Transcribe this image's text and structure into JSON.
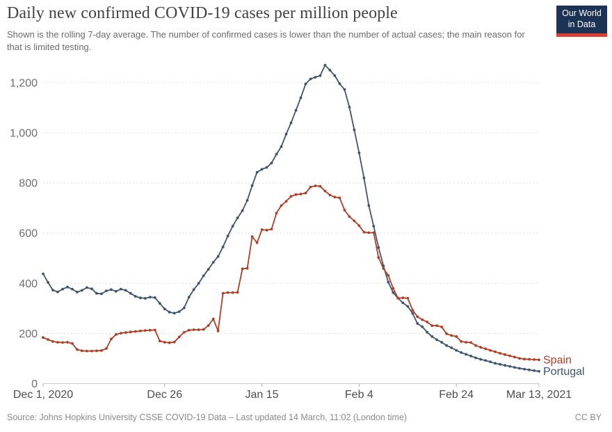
{
  "header": {
    "title": "Daily new confirmed COVID-19 cases per million people",
    "subtitle": "Shown is the rolling 7-day average. The number of confirmed cases is lower than the number of actual cases; the main reason for that is limited testing.",
    "logo": {
      "line1": "Our World",
      "line2": "in Data",
      "bg_color": "#1d3356",
      "stripe_color": "#dc3e32"
    }
  },
  "footer": {
    "source": "Source: Johns Hopkins University CSSE COVID-19 Data – Last updated 14 March, 11:02 (London time)",
    "license": "CC BY"
  },
  "chart_data": {
    "type": "line",
    "title": "Daily new confirmed COVID-19 cases per million people",
    "x": {
      "start_label": "Dec 1, 2020",
      "end_label": "Mar 13, 2021",
      "total_days": 102,
      "tick_days": [
        0,
        25,
        45,
        65,
        85,
        102
      ],
      "tick_labels": [
        "Dec 1, 2020",
        "Dec 26",
        "Jan 15",
        "Feb 4",
        "Feb 24",
        "Mar 13, 2021"
      ]
    },
    "y": {
      "ticks": [
        0,
        200,
        400,
        600,
        800,
        1000,
        1200
      ],
      "tick_labels": [
        "0",
        "200",
        "400",
        "600",
        "800",
        "1,000",
        "1,200"
      ],
      "lim": [
        0,
        1285
      ],
      "grid": "horizontal-dashed"
    },
    "legend_position": "line-end-labels",
    "series": [
      {
        "name": "Portugal",
        "color": "#3d546e",
        "values": [
          438,
          404,
          373,
          366,
          377,
          385,
          377,
          365,
          372,
          383,
          378,
          360,
          358,
          370,
          375,
          368,
          377,
          372,
          360,
          348,
          342,
          340,
          345,
          343,
          320,
          298,
          285,
          281,
          287,
          302,
          345,
          375,
          400,
          430,
          456,
          484,
          507,
          545,
          589,
          628,
          661,
          690,
          731,
          790,
          843,
          855,
          862,
          880,
          915,
          945,
          995,
          1040,
          1090,
          1140,
          1195,
          1215,
          1222,
          1228,
          1270,
          1250,
          1228,
          1196,
          1173,
          1103,
          1012,
          920,
          820,
          710,
          628,
          543,
          470,
          405,
          363,
          341,
          322,
          308,
          280,
          240,
          227,
          205,
          188,
          175,
          165,
          152,
          143,
          133,
          124,
          117,
          110,
          103,
          97,
          92,
          87,
          81,
          77,
          73,
          69,
          65,
          61,
          58,
          55,
          52,
          49
        ]
      },
      {
        "name": "Spain",
        "color": "#b13e22",
        "values": [
          184,
          176,
          168,
          165,
          164,
          165,
          160,
          136,
          131,
          130,
          130,
          131,
          132,
          140,
          178,
          196,
          201,
          204,
          206,
          208,
          210,
          212,
          213,
          214,
          170,
          165,
          163,
          166,
          186,
          205,
          213,
          215,
          215,
          216,
          232,
          258,
          210,
          360,
          363,
          363,
          364,
          458,
          460,
          586,
          562,
          614,
          612,
          616,
          680,
          710,
          727,
          747,
          754,
          756,
          760,
          784,
          789,
          787,
          768,
          752,
          744,
          741,
          692,
          666,
          649,
          630,
          604,
          602,
          602,
          503,
          459,
          432,
          380,
          341,
          342,
          341,
          293,
          267,
          255,
          246,
          231,
          231,
          226,
          199,
          192,
          188,
          168,
          165,
          164,
          152,
          145,
          139,
          133,
          127,
          121,
          116,
          111,
          106,
          101,
          98,
          97,
          96,
          95
        ]
      }
    ]
  }
}
